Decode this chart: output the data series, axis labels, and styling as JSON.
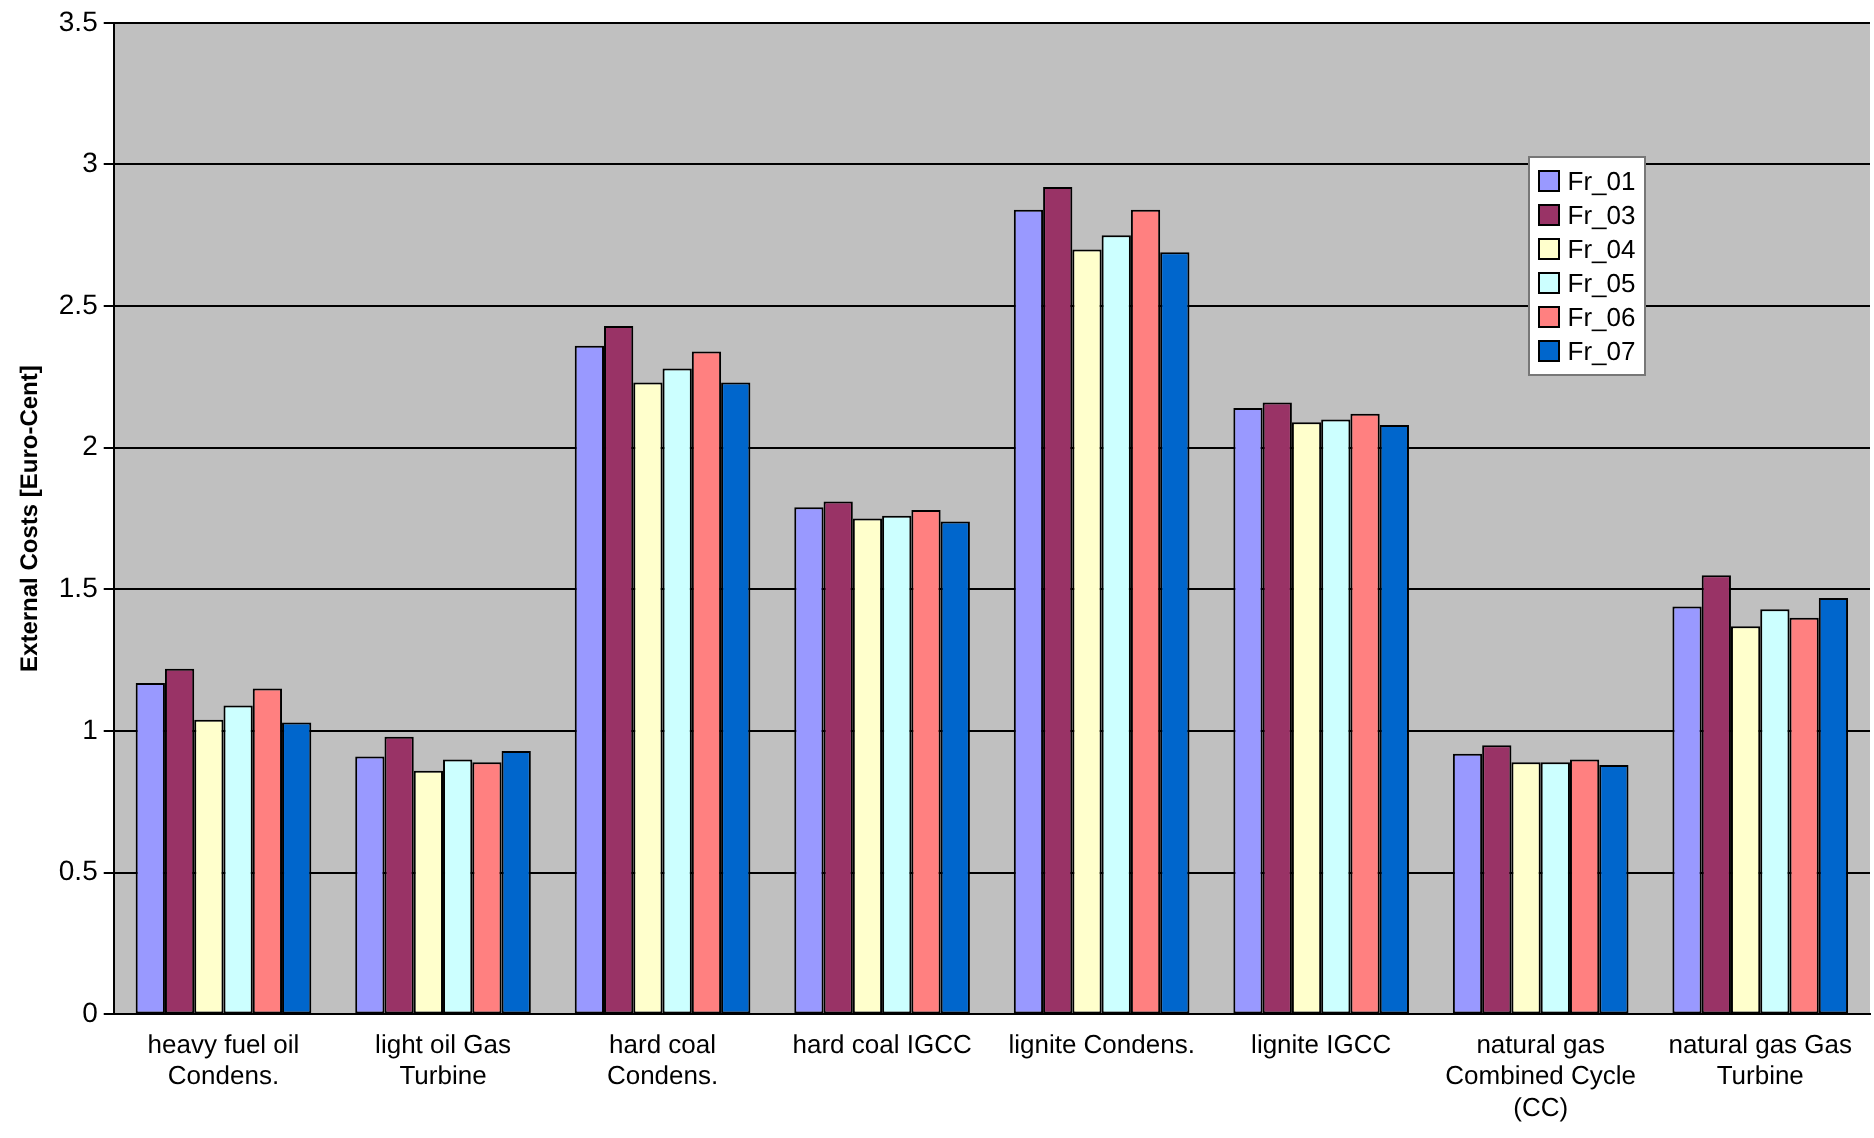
{
  "chart_data": {
    "type": "bar",
    "ylabel": "External Costs [Euro-Cent]",
    "categories": [
      "heavy fuel oil Condens.",
      "light oil Gas Turbine",
      "hard coal Condens.",
      "hard coal IGCC",
      "lignite Condens.",
      "lignite IGCC",
      "natural gas Combined Cycle (CC)",
      "natural gas Gas Turbine"
    ],
    "series": [
      {
        "name": "Fr_01",
        "color": "#9999ff",
        "values": [
          1.17,
          0.91,
          2.36,
          1.79,
          2.84,
          2.14,
          0.92,
          1.44
        ]
      },
      {
        "name": "Fr_03",
        "color": "#993366",
        "values": [
          1.22,
          0.98,
          2.43,
          1.81,
          2.92,
          2.16,
          0.95,
          1.55
        ]
      },
      {
        "name": "Fr_04",
        "color": "#ffffcc",
        "values": [
          1.04,
          0.86,
          2.23,
          1.75,
          2.7,
          2.09,
          0.89,
          1.37
        ]
      },
      {
        "name": "Fr_05",
        "color": "#ccffff",
        "values": [
          1.09,
          0.9,
          2.28,
          1.76,
          2.75,
          2.1,
          0.89,
          1.43
        ]
      },
      {
        "name": "Fr_06",
        "color": "#ff8080",
        "values": [
          1.15,
          0.89,
          2.34,
          1.78,
          2.84,
          2.12,
          0.9,
          1.4
        ]
      },
      {
        "name": "Fr_07",
        "color": "#0066cc",
        "values": [
          1.03,
          0.93,
          2.23,
          1.74,
          2.69,
          2.08,
          0.88,
          1.47
        ]
      }
    ],
    "ylim": [
      0,
      3.5
    ],
    "yticks": [
      0,
      0.5,
      1,
      1.5,
      2,
      2.5,
      3,
      3.5
    ],
    "grid": "y",
    "legend": "top right"
  }
}
